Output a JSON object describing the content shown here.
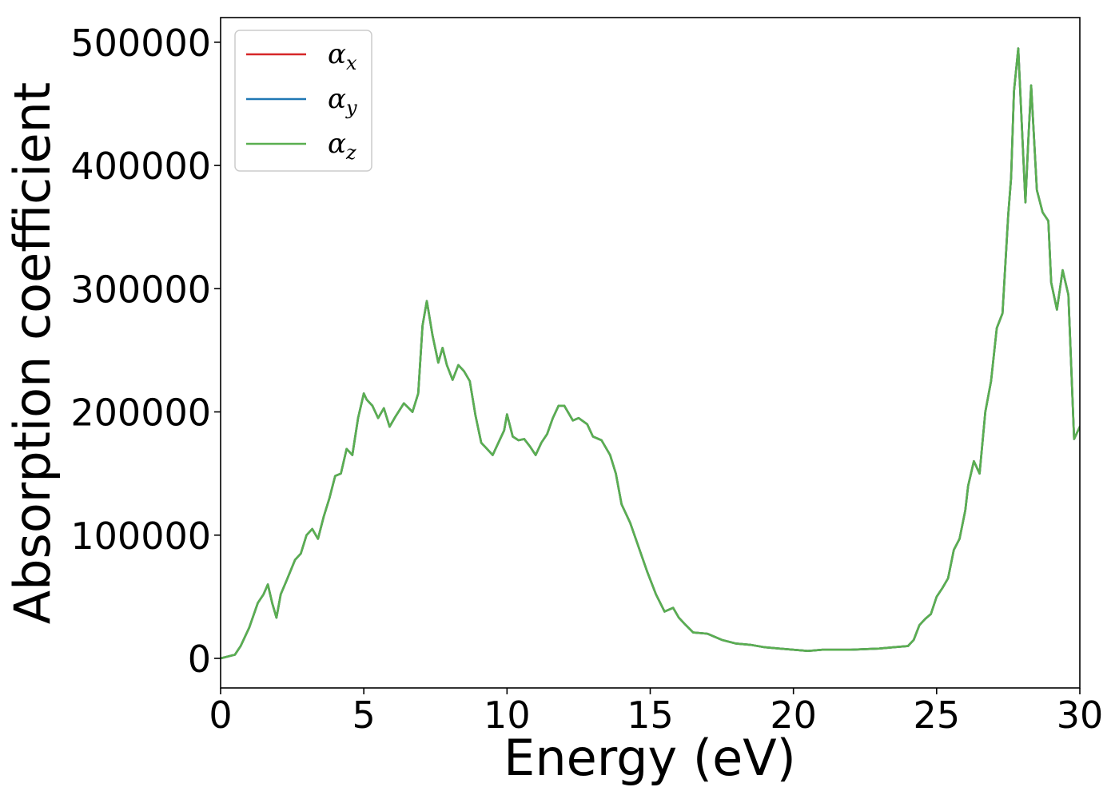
{
  "chart_data": {
    "type": "line",
    "xlabel": "Energy (eV)",
    "ylabel": "Absorption coefficient",
    "xlim": [
      0,
      30
    ],
    "ylim": [
      -24000,
      520000
    ],
    "xticks": [
      0,
      5,
      10,
      15,
      20,
      25,
      30
    ],
    "xtick_labels": [
      "0",
      "5",
      "10",
      "15",
      "20",
      "25",
      "30"
    ],
    "yticks": [
      0,
      100000,
      200000,
      300000,
      400000,
      500000
    ],
    "ytick_labels": [
      "0",
      "100000",
      "200000",
      "300000",
      "400000",
      "500000"
    ],
    "grid": false,
    "legend_position": "top-left",
    "series": [
      {
        "name": "α",
        "subscript": "x",
        "color": "#d62728",
        "x": [
          0,
          0.5,
          0.7,
          1.0,
          1.3,
          1.5,
          1.65,
          1.8,
          1.95,
          2.1,
          2.3,
          2.6,
          2.8,
          3.0,
          3.2,
          3.4,
          3.6,
          3.8,
          4.0,
          4.2,
          4.4,
          4.6,
          4.8,
          5.0,
          5.1,
          5.3,
          5.5,
          5.7,
          5.9,
          6.1,
          6.4,
          6.7,
          6.9,
          7.05,
          7.2,
          7.4,
          7.6,
          7.75,
          7.9,
          8.1,
          8.3,
          8.5,
          8.7,
          8.9,
          9.1,
          9.3,
          9.5,
          9.7,
          9.9,
          10.0,
          10.2,
          10.4,
          10.6,
          10.8,
          11.0,
          11.2,
          11.4,
          11.6,
          11.8,
          12.0,
          12.3,
          12.5,
          12.8,
          13.0,
          13.3,
          13.6,
          13.8,
          14.0,
          14.3,
          14.6,
          14.9,
          15.2,
          15.5,
          15.8,
          16.0,
          16.2,
          16.5,
          17.0,
          17.5,
          18.0,
          18.5,
          19.0,
          19.5,
          20.0,
          20.5,
          21.0,
          22.0,
          23.0,
          23.5,
          24.0,
          24.2,
          24.4,
          24.6,
          24.8,
          25.0,
          25.2,
          25.4,
          25.6,
          25.8,
          26.0,
          26.1,
          26.3,
          26.5,
          26.7,
          26.9,
          27.1,
          27.3,
          27.5,
          27.6,
          27.7,
          27.85,
          28.0,
          28.1,
          28.2,
          28.3,
          28.5,
          28.7,
          28.9,
          29.0,
          29.2,
          29.4,
          29.6,
          29.8,
          30.0
        ],
        "y": [
          0,
          3000,
          10000,
          25000,
          45000,
          52000,
          60000,
          45000,
          33000,
          52000,
          63000,
          80000,
          85000,
          100000,
          105000,
          97000,
          115000,
          130000,
          148000,
          150000,
          170000,
          165000,
          195000,
          215000,
          210000,
          205000,
          195000,
          203000,
          188000,
          196000,
          207000,
          200000,
          215000,
          270000,
          290000,
          262000,
          240000,
          252000,
          238000,
          226000,
          238000,
          233000,
          225000,
          197000,
          175000,
          170000,
          165000,
          175000,
          185000,
          198000,
          180000,
          177000,
          178000,
          172000,
          165000,
          175000,
          182000,
          195000,
          205000,
          205000,
          193000,
          195000,
          190000,
          180000,
          177000,
          165000,
          150000,
          125000,
          110000,
          90000,
          70000,
          52000,
          38000,
          41000,
          33000,
          28000,
          21000,
          20000,
          15000,
          12000,
          11000,
          9000,
          8000,
          7000,
          6000,
          7000,
          7000,
          8000,
          9000,
          10000,
          15000,
          27000,
          32000,
          36000,
          50000,
          57000,
          65000,
          88000,
          97000,
          120000,
          140000,
          160000,
          150000,
          200000,
          225000,
          268000,
          280000,
          360000,
          390000,
          460000,
          495000,
          420000,
          370000,
          420000,
          465000,
          380000,
          362000,
          355000,
          305000,
          283000,
          315000,
          295000,
          178000,
          188000
        ]
      },
      {
        "name": "α",
        "subscript": "y",
        "color": "#1f77b4",
        "x": [
          0,
          0.5,
          0.7,
          1.0,
          1.3,
          1.5,
          1.65,
          1.8,
          1.95,
          2.1,
          2.3,
          2.6,
          2.8,
          3.0,
          3.2,
          3.4,
          3.6,
          3.8,
          4.0,
          4.2,
          4.4,
          4.6,
          4.8,
          5.0,
          5.1,
          5.3,
          5.5,
          5.7,
          5.9,
          6.1,
          6.4,
          6.7,
          6.9,
          7.05,
          7.2,
          7.4,
          7.6,
          7.75,
          7.9,
          8.1,
          8.3,
          8.5,
          8.7,
          8.9,
          9.1,
          9.3,
          9.5,
          9.7,
          9.9,
          10.0,
          10.2,
          10.4,
          10.6,
          10.8,
          11.0,
          11.2,
          11.4,
          11.6,
          11.8,
          12.0,
          12.3,
          12.5,
          12.8,
          13.0,
          13.3,
          13.6,
          13.8,
          14.0,
          14.3,
          14.6,
          14.9,
          15.2,
          15.5,
          15.8,
          16.0,
          16.2,
          16.5,
          17.0,
          17.5,
          18.0,
          18.5,
          19.0,
          19.5,
          20.0,
          20.5,
          21.0,
          22.0,
          23.0,
          23.5,
          24.0,
          24.2,
          24.4,
          24.6,
          24.8,
          25.0,
          25.2,
          25.4,
          25.6,
          25.8,
          26.0,
          26.1,
          26.3,
          26.5,
          26.7,
          26.9,
          27.1,
          27.3,
          27.5,
          27.6,
          27.7,
          27.85,
          28.0,
          28.1,
          28.2,
          28.3,
          28.5,
          28.7,
          28.9,
          29.0,
          29.2,
          29.4,
          29.6,
          29.8,
          30.0
        ],
        "y": [
          0,
          3000,
          10000,
          25000,
          45000,
          52000,
          60000,
          45000,
          33000,
          52000,
          63000,
          80000,
          85000,
          100000,
          105000,
          97000,
          115000,
          130000,
          148000,
          150000,
          170000,
          165000,
          195000,
          215000,
          210000,
          205000,
          195000,
          203000,
          188000,
          196000,
          207000,
          200000,
          215000,
          270000,
          290000,
          262000,
          240000,
          252000,
          238000,
          226000,
          238000,
          233000,
          225000,
          197000,
          175000,
          170000,
          165000,
          175000,
          185000,
          198000,
          180000,
          177000,
          178000,
          172000,
          165000,
          175000,
          182000,
          195000,
          205000,
          205000,
          193000,
          195000,
          190000,
          180000,
          177000,
          165000,
          150000,
          125000,
          110000,
          90000,
          70000,
          52000,
          38000,
          41000,
          33000,
          28000,
          21000,
          20000,
          15000,
          12000,
          11000,
          9000,
          8000,
          7000,
          6000,
          7000,
          7000,
          8000,
          9000,
          10000,
          15000,
          27000,
          32000,
          36000,
          50000,
          57000,
          65000,
          88000,
          97000,
          120000,
          140000,
          160000,
          150000,
          200000,
          225000,
          268000,
          280000,
          360000,
          390000,
          460000,
          495000,
          420000,
          370000,
          420000,
          465000,
          380000,
          362000,
          355000,
          305000,
          283000,
          315000,
          295000,
          178000,
          188000
        ]
      },
      {
        "name": "α",
        "subscript": "z",
        "color": "#5aaf50",
        "x": [
          0,
          0.5,
          0.7,
          1.0,
          1.3,
          1.5,
          1.65,
          1.8,
          1.95,
          2.1,
          2.3,
          2.6,
          2.8,
          3.0,
          3.2,
          3.4,
          3.6,
          3.8,
          4.0,
          4.2,
          4.4,
          4.6,
          4.8,
          5.0,
          5.1,
          5.3,
          5.5,
          5.7,
          5.9,
          6.1,
          6.4,
          6.7,
          6.9,
          7.05,
          7.2,
          7.4,
          7.6,
          7.75,
          7.9,
          8.1,
          8.3,
          8.5,
          8.7,
          8.9,
          9.1,
          9.3,
          9.5,
          9.7,
          9.9,
          10.0,
          10.2,
          10.4,
          10.6,
          10.8,
          11.0,
          11.2,
          11.4,
          11.6,
          11.8,
          12.0,
          12.3,
          12.5,
          12.8,
          13.0,
          13.3,
          13.6,
          13.8,
          14.0,
          14.3,
          14.6,
          14.9,
          15.2,
          15.5,
          15.8,
          16.0,
          16.2,
          16.5,
          17.0,
          17.5,
          18.0,
          18.5,
          19.0,
          19.5,
          20.0,
          20.5,
          21.0,
          22.0,
          23.0,
          23.5,
          24.0,
          24.2,
          24.4,
          24.6,
          24.8,
          25.0,
          25.2,
          25.4,
          25.6,
          25.8,
          26.0,
          26.1,
          26.3,
          26.5,
          26.7,
          26.9,
          27.1,
          27.3,
          27.5,
          27.6,
          27.7,
          27.85,
          28.0,
          28.1,
          28.2,
          28.3,
          28.5,
          28.7,
          28.9,
          29.0,
          29.2,
          29.4,
          29.6,
          29.8,
          30.0
        ],
        "y": [
          0,
          3000,
          10000,
          25000,
          45000,
          52000,
          60000,
          45000,
          33000,
          52000,
          63000,
          80000,
          85000,
          100000,
          105000,
          97000,
          115000,
          130000,
          148000,
          150000,
          170000,
          165000,
          195000,
          215000,
          210000,
          205000,
          195000,
          203000,
          188000,
          196000,
          207000,
          200000,
          215000,
          270000,
          290000,
          262000,
          240000,
          252000,
          238000,
          226000,
          238000,
          233000,
          225000,
          197000,
          175000,
          170000,
          165000,
          175000,
          185000,
          198000,
          180000,
          177000,
          178000,
          172000,
          165000,
          175000,
          182000,
          195000,
          205000,
          205000,
          193000,
          195000,
          190000,
          180000,
          177000,
          165000,
          150000,
          125000,
          110000,
          90000,
          70000,
          52000,
          38000,
          41000,
          33000,
          28000,
          21000,
          20000,
          15000,
          12000,
          11000,
          9000,
          8000,
          7000,
          6000,
          7000,
          7000,
          8000,
          9000,
          10000,
          15000,
          27000,
          32000,
          36000,
          50000,
          57000,
          65000,
          88000,
          97000,
          120000,
          140000,
          160000,
          150000,
          200000,
          225000,
          268000,
          280000,
          360000,
          390000,
          460000,
          495000,
          420000,
          370000,
          420000,
          465000,
          380000,
          362000,
          355000,
          305000,
          283000,
          315000,
          295000,
          178000,
          188000
        ]
      }
    ]
  }
}
